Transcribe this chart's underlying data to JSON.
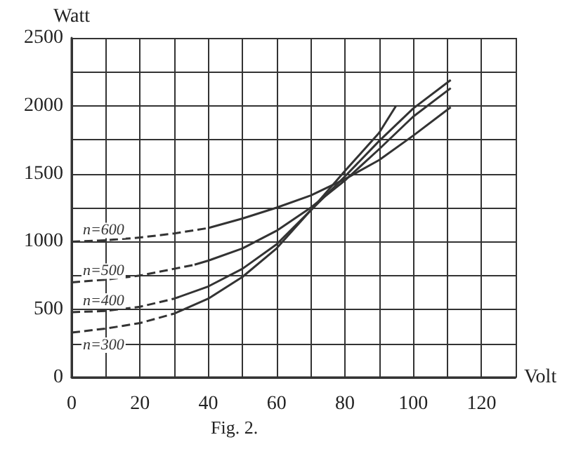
{
  "chart_data": {
    "type": "line",
    "xlabel": "Volt",
    "ylabel": "Watt",
    "annotations": [
      "Fig. 2."
    ],
    "xlim": [
      0,
      130
    ],
    "ylim": [
      0,
      2500
    ],
    "xticks": [
      0,
      {
        "value": 10,
        "label": null
      },
      20,
      {
        "value": 30,
        "label": null
      },
      40,
      {
        "value": 50,
        "label": null
      },
      60,
      {
        "value": 70,
        "label": null
      },
      80,
      {
        "value": 90,
        "label": null
      },
      100,
      {
        "value": 110,
        "label": null
      },
      120,
      {
        "value": 130,
        "label": null
      }
    ],
    "yticks": [
      0,
      {
        "value": 250,
        "label": null
      },
      500,
      {
        "value": 750,
        "label": null
      },
      1000,
      {
        "value": 1250,
        "label": null
      },
      1500,
      {
        "value": 1750,
        "label": null
      },
      2000,
      {
        "value": 2250,
        "label": null
      },
      2500
    ],
    "grid": true,
    "legend": false,
    "marker": "none",
    "series": [
      {
        "name": "n=600",
        "color": "#333333",
        "line_style": "dashed",
        "x": [
          0,
          10,
          20,
          30,
          40
        ],
        "values": [
          1000,
          1010,
          1030,
          1060,
          1100
        ]
      },
      {
        "color": "#333333",
        "line_style": "solid",
        "x": [
          40,
          50,
          60,
          70,
          80,
          90,
          100,
          111
        ],
        "values": [
          1100,
          1170,
          1250,
          1340,
          1460,
          1600,
          1780,
          1990
        ]
      },
      {
        "name": "n=500",
        "color": "#333333",
        "line_style": "dashed",
        "x": [
          0,
          10,
          20,
          30,
          36
        ],
        "values": [
          700,
          720,
          750,
          800,
          830
        ]
      },
      {
        "color": "#333333",
        "line_style": "solid",
        "x": [
          36,
          40,
          50,
          60,
          70,
          80,
          90,
          100,
          111
        ],
        "values": [
          830,
          860,
          950,
          1080,
          1250,
          1450,
          1680,
          1920,
          2130
        ]
      },
      {
        "name": "n=400",
        "color": "#333333",
        "line_style": "dashed",
        "x": [
          0,
          10,
          20,
          30
        ],
        "values": [
          480,
          490,
          520,
          580
        ]
      },
      {
        "color": "#333333",
        "line_style": "solid",
        "x": [
          30,
          40,
          50,
          60,
          70,
          80,
          90,
          100,
          111
        ],
        "values": [
          580,
          670,
          800,
          980,
          1230,
          1480,
          1740,
          1980,
          2190
        ]
      },
      {
        "name": "n=300",
        "color": "#333333",
        "line_style": "dashed",
        "x": [
          0,
          10,
          20,
          30
        ],
        "values": [
          330,
          360,
          400,
          470
        ]
      },
      {
        "color": "#333333",
        "line_style": "solid",
        "x": [
          30,
          40,
          50,
          60,
          70,
          80,
          90,
          95
        ],
        "values": [
          470,
          580,
          740,
          950,
          1230,
          1520,
          1800,
          2000
        ]
      }
    ]
  }
}
